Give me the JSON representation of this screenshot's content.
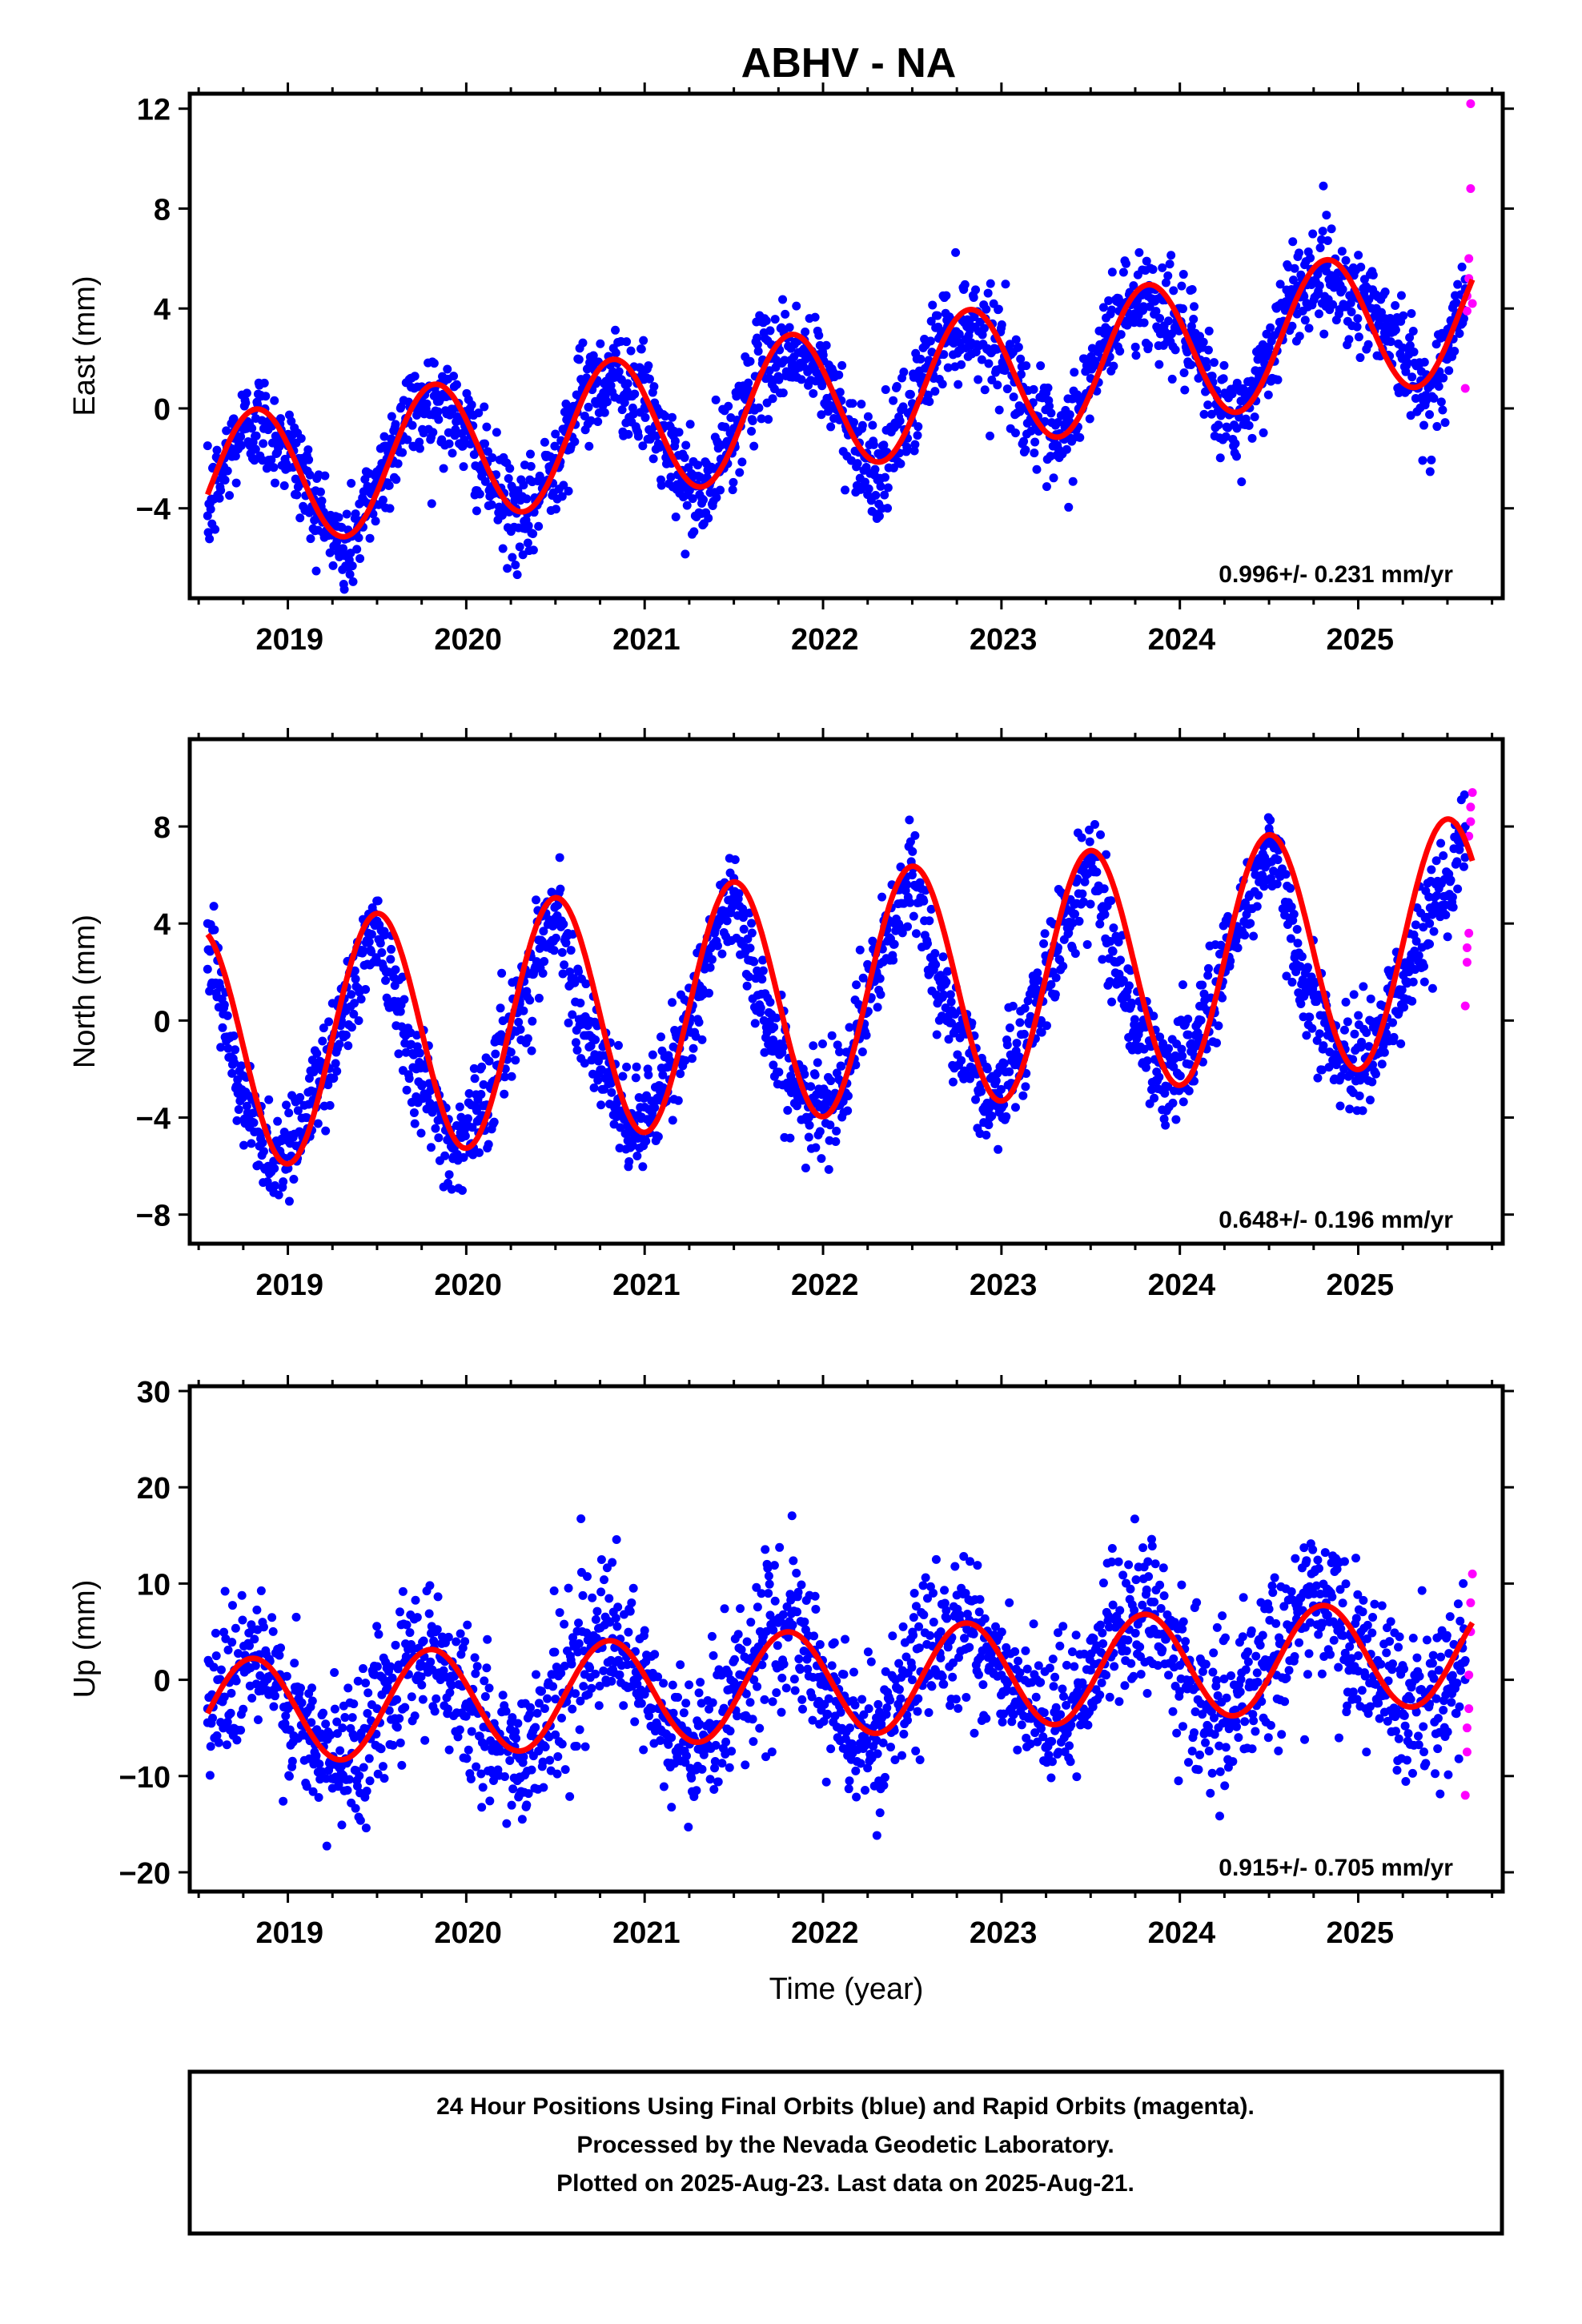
{
  "title": "ABHV - NA",
  "colors": {
    "final": "#0000ff",
    "rapid": "#ff00ff",
    "fit": "#ff0000",
    "frame": "#000000"
  },
  "caption": {
    "line1": "24 Hour Positions Using Final Orbits (blue) and Rapid Orbits (magenta).",
    "line2": "Processed by the Nevada Geodetic Laboratory.",
    "line3": "Plotted on 2025-Aug-23. Last data on 2025-Aug-21."
  },
  "chart_data": [
    {
      "type": "scatter",
      "panel": "east",
      "ylabel": "East (mm)",
      "xlabel": "",
      "xlim": [
        2018.45,
        2025.81
      ],
      "ylim": [
        -7.6,
        12.6
      ],
      "yticks": [
        -4,
        0,
        4,
        8,
        12
      ],
      "xticks": [
        2019,
        2020,
        2021,
        2022,
        2023,
        2024,
        2025
      ],
      "rate": "0.996+/- 0.231 mm/yr",
      "trend": {
        "rate": 0.996,
        "offset": -3.1,
        "t0": 2018.55,
        "amplitude": 2.8,
        "phase": 2018.82
      },
      "series": [
        {
          "name": "Final Orbits",
          "color": "blue",
          "x": [
            2018.55,
            2018.7,
            2018.82,
            2019.0,
            2019.15,
            2019.32,
            2019.5,
            2019.66,
            2019.82,
            2020.0,
            2020.15,
            2020.32,
            2020.5,
            2020.66,
            2020.82,
            2021.0,
            2021.15,
            2021.32,
            2021.5,
            2021.66,
            2021.82,
            2022.0,
            2022.15,
            2022.32,
            2022.5,
            2022.66,
            2022.82,
            2023.0,
            2023.15,
            2023.32,
            2023.5,
            2023.66,
            2023.82,
            2024.0,
            2024.15,
            2024.32,
            2024.5,
            2024.66,
            2024.82,
            2025.0,
            2025.15,
            2025.38,
            2025.5,
            2025.6
          ],
          "y": [
            -4.3,
            -1.2,
            -0.4,
            -1.5,
            -3.8,
            -5.9,
            -3.0,
            -0.4,
            0.5,
            -0.9,
            -3.1,
            -4.8,
            -2.0,
            0.7,
            1.4,
            0.3,
            -2.2,
            -3.8,
            -0.8,
            1.8,
            2.4,
            1.4,
            -0.9,
            -2.8,
            0.2,
            2.9,
            3.5,
            2.4,
            0.0,
            -1.9,
            1.2,
            3.9,
            4.5,
            3.4,
            1.0,
            -0.8,
            2.2,
            4.9,
            5.5,
            4.4,
            3.6,
            0.3,
            2.0,
            4.8
          ]
        },
        {
          "name": "Rapid Orbits",
          "color": "magenta",
          "x": [
            2025.6,
            2025.61,
            2025.61,
            2025.62,
            2025.62,
            2025.63,
            2025.63,
            2025.64
          ],
          "y": [
            0.8,
            3.9,
            4.5,
            5.2,
            6.0,
            12.2,
            8.8,
            4.2
          ]
        }
      ]
    },
    {
      "type": "scatter",
      "panel": "north",
      "ylabel": "North (mm)",
      "xlabel": "",
      "xlim": [
        2018.45,
        2025.81
      ],
      "ylim": [
        -9.2,
        11.6
      ],
      "yticks": [
        -8,
        -4,
        0,
        4,
        8
      ],
      "xticks": [
        2019,
        2020,
        2021,
        2022,
        2023,
        2024,
        2025
      ],
      "rate": "0.648+/- 0.196 mm/yr",
      "trend": {
        "rate": 0.648,
        "offset": -1.2,
        "t0": 2018.55,
        "amplitude": 5.0,
        "phase": 2019.5
      },
      "series": [
        {
          "name": "Final Orbits",
          "color": "blue",
          "x": [
            2018.55,
            2018.72,
            2018.92,
            2019.1,
            2019.3,
            2019.5,
            2019.72,
            2019.92,
            2020.1,
            2020.3,
            2020.5,
            2020.72,
            2020.92,
            2021.1,
            2021.3,
            2021.5,
            2021.72,
            2021.92,
            2022.1,
            2022.3,
            2022.5,
            2022.72,
            2022.92,
            2023.1,
            2023.3,
            2023.5,
            2023.72,
            2023.92,
            2024.1,
            2024.3,
            2024.5,
            2024.72,
            2024.92,
            2025.05,
            2025.4,
            2025.6
          ],
          "y": [
            4.0,
            -3.0,
            -5.8,
            -4.0,
            0.0,
            4.1,
            -2.0,
            -5.2,
            -3.5,
            0.8,
            4.7,
            -1.4,
            -4.6,
            -3.0,
            1.2,
            5.3,
            -0.8,
            -4.0,
            -2.5,
            2.0,
            6.0,
            -0.1,
            -3.4,
            -1.5,
            2.8,
            6.6,
            0.5,
            -2.7,
            -0.5,
            3.3,
            7.3,
            1.2,
            -2.0,
            -1.5,
            4.0,
            8.0
          ]
        },
        {
          "name": "Rapid Orbits",
          "color": "magenta",
          "x": [
            2025.6,
            2025.61,
            2025.61,
            2025.62,
            2025.62,
            2025.63,
            2025.63,
            2025.64
          ],
          "y": [
            0.6,
            2.4,
            3.0,
            3.6,
            7.6,
            8.2,
            8.8,
            9.4
          ]
        }
      ]
    },
    {
      "type": "scatter",
      "panel": "up",
      "ylabel": "Up (mm)",
      "xlabel": "Time (year)",
      "xlim": [
        2018.45,
        2025.81
      ],
      "ylim": [
        -22.0,
        30.5
      ],
      "yticks": [
        -20,
        -10,
        0,
        10,
        20,
        30
      ],
      "xticks": [
        2019,
        2020,
        2021,
        2022,
        2023,
        2024,
        2025
      ],
      "rate": "0.915+/- 0.705 mm/yr",
      "trend": {
        "rate": 0.915,
        "offset": -3.5,
        "t0": 2018.55,
        "amplitude": 5.5,
        "phase": 2018.8
      },
      "series": [
        {
          "name": "Final Orbits",
          "color": "blue",
          "x": [
            2018.55,
            2018.7,
            2018.82,
            2019.0,
            2019.15,
            2019.3,
            2019.5,
            2019.66,
            2019.82,
            2020.0,
            2020.15,
            2020.3,
            2020.5,
            2020.66,
            2020.82,
            2021.0,
            2021.15,
            2021.3,
            2021.5,
            2021.66,
            2021.82,
            2022.0,
            2022.15,
            2022.3,
            2022.5,
            2022.66,
            2022.82,
            2023.0,
            2023.15,
            2023.3,
            2023.5,
            2023.66,
            2023.82,
            2024.0,
            2024.15,
            2024.3,
            2024.5,
            2024.66,
            2024.82,
            2025.0,
            2025.25,
            2025.5,
            2025.6
          ],
          "y": [
            -3.0,
            1.0,
            2.5,
            -3.0,
            -7.5,
            -9.0,
            -3.0,
            2.0,
            3.3,
            -2.5,
            -7.0,
            -8.2,
            -2.0,
            3.0,
            4.3,
            -1.5,
            -6.0,
            -7.2,
            -1.0,
            4.0,
            5.3,
            -0.5,
            -5.0,
            -6.3,
            0.0,
            5.0,
            6.2,
            0.5,
            -4.0,
            -5.3,
            1.0,
            6.0,
            7.1,
            1.5,
            -3.0,
            -4.4,
            2.0,
            7.0,
            8.0,
            2.5,
            -3.5,
            -1.0,
            2.0
          ]
        },
        {
          "name": "Rapid Orbits",
          "color": "magenta",
          "x": [
            2025.6,
            2025.61,
            2025.61,
            2025.62,
            2025.62,
            2025.63,
            2025.63,
            2025.64
          ],
          "y": [
            -12.0,
            -7.5,
            -5.0,
            -3.0,
            0.5,
            5.0,
            8.0,
            11.0
          ]
        }
      ]
    }
  ]
}
